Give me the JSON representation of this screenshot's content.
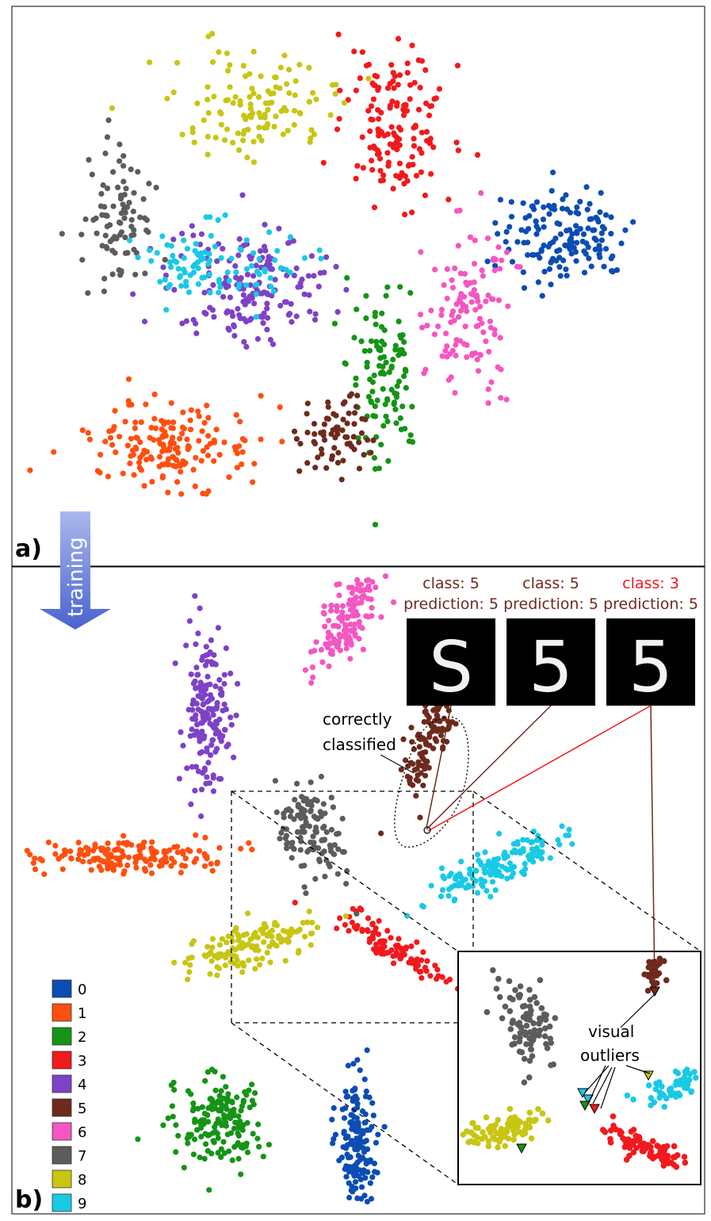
{
  "panels": {
    "a_label": "a)",
    "b_label": "b)"
  },
  "arrow_label": "training",
  "colors": {
    "0": "#0b4db3",
    "1": "#ff4f0f",
    "2": "#159415",
    "3": "#f2191c",
    "4": "#7d42c7",
    "5": "#6e2a1c",
    "6": "#f556c2",
    "7": "#5c5c5c",
    "8": "#c8c513",
    "9": "#19c9e6"
  },
  "legend": [
    {
      "label": "0"
    },
    {
      "label": "1"
    },
    {
      "label": "2"
    },
    {
      "label": "3"
    },
    {
      "label": "4"
    },
    {
      "label": "5"
    },
    {
      "label": "6"
    },
    {
      "label": "7"
    },
    {
      "label": "8"
    },
    {
      "label": "9"
    }
  ],
  "samples": [
    {
      "class_text": "class: 5",
      "prediction_text": "prediction: 5",
      "class_color": "#6e2a1c",
      "glyph": "S"
    },
    {
      "class_text": "class: 5",
      "prediction_text": "prediction: 5",
      "class_color": "#6e2a1c",
      "glyph": "5"
    },
    {
      "class_text": "class: 3",
      "prediction_text": "prediction: 5",
      "class_color": "#f2191c",
      "glyph": "5"
    }
  ],
  "annotations": {
    "correct_line1": "correctly",
    "correct_line2": "classified",
    "outlier_line1": "visual",
    "outlier_line2": "outliers"
  },
  "chart_data": [
    {
      "type": "scatter",
      "panel": "a",
      "description_free": true,
      "clusters": [
        {
          "class": 0,
          "center": [
            8.1,
            3.1
          ],
          "spread": [
            0.9,
            0.6
          ],
          "n": 150
        },
        {
          "class": 1,
          "center": [
            2.2,
            6.0
          ],
          "spread": [
            1.1,
            0.5
          ],
          "n": 170
        },
        {
          "class": 2,
          "center": [
            5.4,
            4.9
          ],
          "spread": [
            0.5,
            1.2
          ],
          "n": 110
        },
        {
          "class": 3,
          "center": [
            5.6,
            1.6
          ],
          "spread": [
            0.7,
            0.9
          ],
          "n": 150
        },
        {
          "class": 4,
          "center": [
            3.4,
            3.8
          ],
          "spread": [
            1.1,
            0.8
          ],
          "n": 170
        },
        {
          "class": 5,
          "center": [
            4.6,
            5.8
          ],
          "spread": [
            0.5,
            0.5
          ],
          "n": 70
        },
        {
          "class": 6,
          "center": [
            6.7,
            4.1
          ],
          "spread": [
            0.6,
            1.1
          ],
          "n": 120
        },
        {
          "class": 7,
          "center": [
            1.4,
            2.9
          ],
          "spread": [
            0.5,
            0.8
          ],
          "n": 90
        },
        {
          "class": 8,
          "center": [
            3.6,
            1.3
          ],
          "spread": [
            1.1,
            0.6
          ],
          "n": 120
        },
        {
          "class": 9,
          "center": [
            2.8,
            3.5
          ],
          "spread": [
            1.1,
            0.5
          ],
          "n": 100
        }
      ],
      "xlim": [
        0,
        10
      ],
      "ylim": [
        0,
        7.5
      ]
    },
    {
      "type": "scatter",
      "panel": "b",
      "clusters": [
        {
          "class": 0,
          "center": [
            5.0,
            9.0
          ],
          "spread": [
            0.25,
            1.05
          ],
          "n": 160,
          "angle": 0
        },
        {
          "class": 1,
          "center": [
            1.5,
            4.5
          ],
          "spread": [
            1.25,
            0.25
          ],
          "n": 170,
          "angle": -2
        },
        {
          "class": 2,
          "center": [
            3.0,
            8.7
          ],
          "spread": [
            0.6,
            0.7
          ],
          "n": 160,
          "angle": -40
        },
        {
          "class": 3,
          "center": [
            5.6,
            6.0
          ],
          "spread": [
            0.9,
            0.2
          ],
          "n": 110,
          "angle": 35
        },
        {
          "class": 4,
          "center": [
            2.8,
            2.3
          ],
          "spread": [
            0.3,
            1.15
          ],
          "n": 160,
          "angle": 0
        },
        {
          "class": 5,
          "center": [
            6.05,
            2.6
          ],
          "spread": [
            0.25,
            0.85
          ],
          "n": 110,
          "angle": 15
        },
        {
          "class": 6,
          "center": [
            4.85,
            0.75
          ],
          "spread": [
            0.3,
            0.9
          ],
          "n": 140,
          "angle": 22
        },
        {
          "class": 7,
          "center": [
            4.3,
            4.1
          ],
          "spread": [
            0.4,
            0.75
          ],
          "n": 120,
          "angle": -25
        },
        {
          "class": 8,
          "center": [
            3.5,
            5.9
          ],
          "spread": [
            1.0,
            0.3
          ],
          "n": 140,
          "angle": -17
        },
        {
          "class": 9,
          "center": [
            7.0,
            4.7
          ],
          "spread": [
            0.9,
            0.28
          ],
          "n": 140,
          "angle": -25
        }
      ],
      "xlim": [
        0,
        10
      ],
      "ylim": [
        0,
        10
      ]
    }
  ]
}
